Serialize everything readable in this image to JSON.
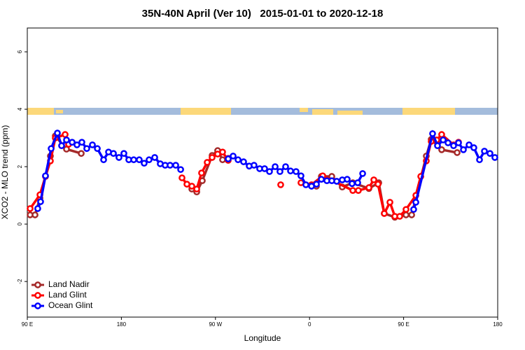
{
  "chart_data": {
    "type": "line",
    "title": "35N-40N April (Ver 10)   2015-01-01 to 2020-12-18",
    "x_label": "Longitude",
    "y_label": "XCO2 - MLO trend (ppm)",
    "xlim": [
      90,
      540
    ],
    "ylim": [
      -3.24,
      6.83
    ],
    "xticks": [
      {
        "value": 90,
        "label": "90 E"
      },
      180,
      {
        "value": 270,
        "label": "90 W"
      },
      {
        "value": 360,
        "label": "0"
      },
      {
        "value": 450,
        "label": "90 E"
      },
      {
        "value": 540,
        "label": "180"
      }
    ],
    "yticks": [
      -2,
      0,
      2,
      4,
      6
    ],
    "legend": "bottom-left",
    "series": [
      {
        "name": "Land Nadir",
        "color": "#a52a2a",
        "x": [
          92.7,
          97.4,
          102.1,
          112.1,
          116.8,
          127.5,
          141.6,
          null,
          247.4,
          252.1,
          257.4,
          266.8,
          272.1,
          276.8,
          282.2,
          null,
          366.6,
          371.3,
          381.3,
          391.3,
          401.4,
          416.8,
          426.2,
          431.5,
          441.6,
          452.3,
          457.7,
          471.7,
          476.4,
          486.4,
          501.2
        ],
        "values": [
          0.32,
          0.32,
          0.9,
          2.37,
          3.07,
          2.61,
          2.46,
          null,
          1.22,
          1.12,
          1.51,
          2.39,
          2.56,
          2.24,
          2.29,
          null,
          1.32,
          1.66,
          1.66,
          1.29,
          1.44,
          1.24,
          1.44,
          0.37,
          0.24,
          0.32,
          0.32,
          2.37,
          2.95,
          2.59,
          2.49
        ]
      },
      {
        "name": "Land Glint",
        "color": "#ff0000",
        "x": [
          92.7,
          102.1,
          107.4,
          112.1,
          116.8,
          126.2,
          129.5,
          null,
          238.0,
          242.7,
          247.4,
          252.1,
          256.7,
          262.1,
          266.8,
          272.1,
          276.8,
          282.2,
          null,
          332.4,
          null,
          351.8,
          361.9,
          372.6,
          401.4,
          406.7,
          416.8,
          421.5,
          425.5,
          431.5,
          436.9,
          441.6,
          446.3,
          452.3,
          461.7,
          466.4,
          471.7,
          476.4,
          481.7,
          486.4,
          497.8,
          502.5
        ],
        "values": [
          0.54,
          1.02,
          1.66,
          2.2,
          3.0,
          3.12,
          2.78,
          null,
          1.61,
          1.39,
          1.32,
          1.22,
          1.78,
          2.15,
          2.32,
          2.44,
          2.51,
          2.22,
          null,
          1.37,
          null,
          1.44,
          1.37,
          1.68,
          1.17,
          1.17,
          1.27,
          1.54,
          1.39,
          0.37,
          0.76,
          0.27,
          0.27,
          0.51,
          1.0,
          1.66,
          2.2,
          2.88,
          2.93,
          3.12,
          2.76,
          2.85
        ]
      },
      {
        "name": "Ocean Glint",
        "color": "#0000ff",
        "x": [
          100.0,
          102.7,
          107.4,
          112.8,
          118.8,
          122.8,
          127.5,
          132.9,
          137.5,
          142.2,
          146.9,
          152.3,
          157.0,
          163.0,
          167.7,
          172.4,
          177.7,
          182.4,
          187.1,
          191.8,
          197.1,
          201.8,
          206.5,
          211.9,
          217.2,
          221.9,
          226.6,
          232.0,
          236.7,
          null,
          282.2,
          286.9,
          291.6,
          296.9,
          302.3,
          306.9,
          312.3,
          317.0,
          321.7,
          327.1,
          331.7,
          337.1,
          341.8,
          347.1,
          351.8,
          356.5,
          361.9,
          366.6,
          371.3,
          376.6,
          381.3,
          386.0,
          391.3,
          396.0,
          400.7,
          406.1,
          410.8,
          null,
          459.6,
          461.7,
          477.7,
          482.4,
          487.8,
          492.5,
          497.8,
          502.5,
          507.2,
          512.6,
          517.2,
          522.6,
          527.3,
          532.6,
          537.3
        ],
        "values": [
          0.54,
          0.78,
          1.68,
          2.63,
          3.17,
          2.73,
          2.93,
          2.85,
          2.76,
          2.85,
          2.63,
          2.76,
          2.63,
          2.24,
          2.51,
          2.46,
          2.32,
          2.46,
          2.24,
          2.24,
          2.24,
          2.12,
          2.24,
          2.32,
          2.1,
          2.05,
          2.05,
          2.05,
          1.9,
          null,
          2.27,
          2.37,
          2.24,
          2.17,
          2.02,
          2.05,
          1.93,
          1.93,
          1.83,
          2.0,
          1.83,
          2.0,
          1.85,
          1.83,
          1.68,
          1.37,
          1.32,
          1.39,
          1.56,
          1.51,
          1.51,
          1.49,
          1.54,
          1.56,
          1.41,
          1.44,
          1.76,
          null,
          0.51,
          0.76,
          3.15,
          2.73,
          2.93,
          2.83,
          2.73,
          2.83,
          2.59,
          2.76,
          2.66,
          2.24,
          2.54,
          2.46,
          2.32
        ]
      }
    ]
  }
}
